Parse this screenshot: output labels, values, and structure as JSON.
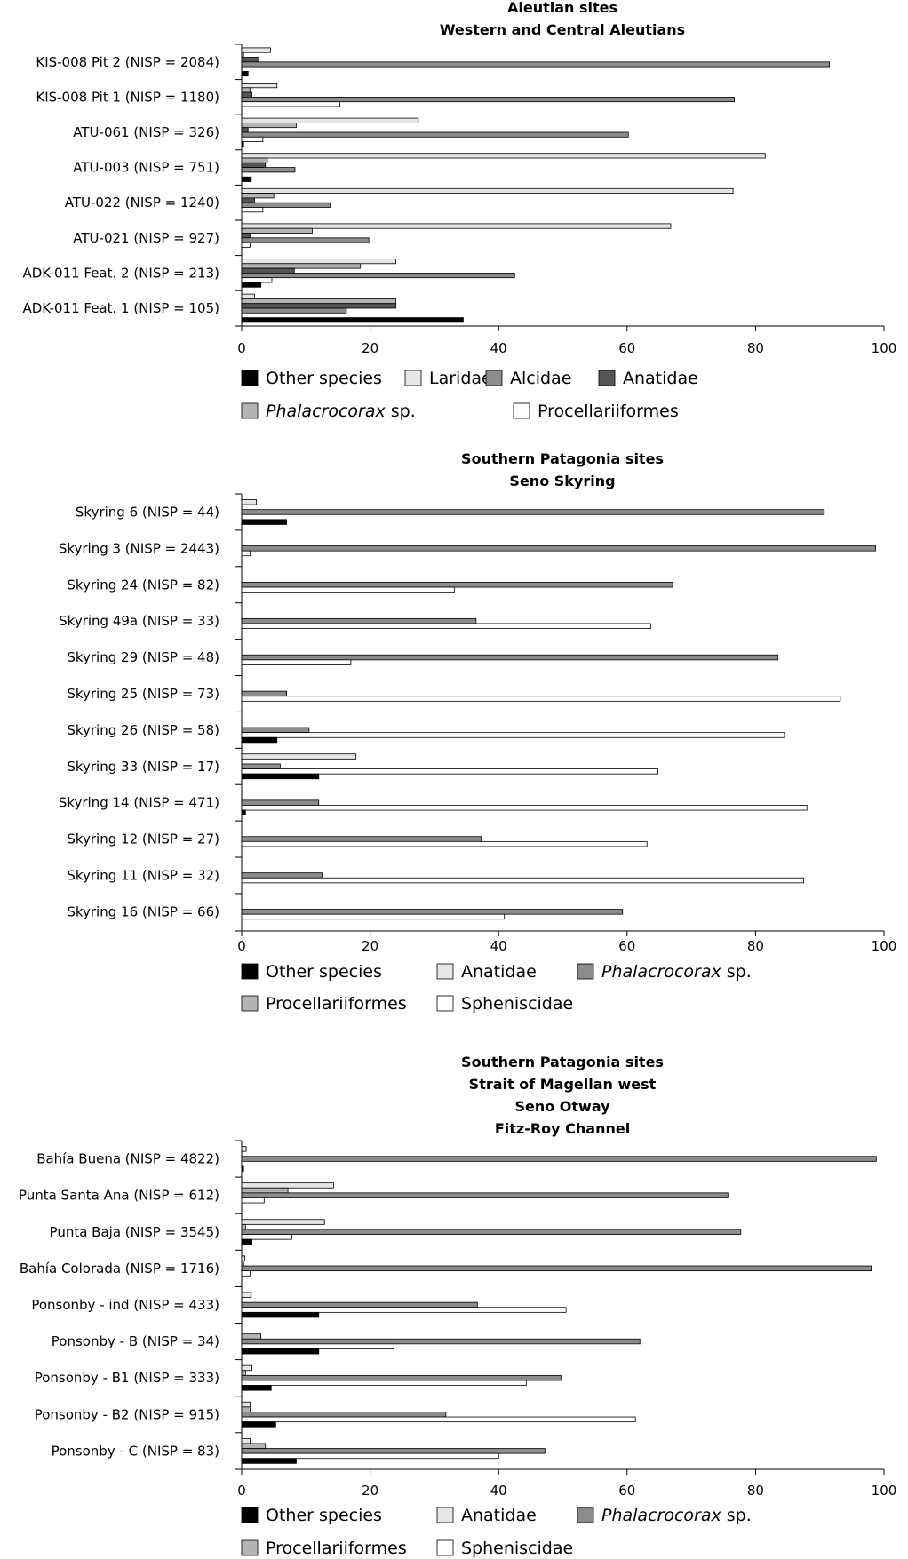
{
  "colors": {
    "other_species": "#000000",
    "laridae": "#e6e6e6",
    "alcidae": "#8c8c8c",
    "anatidae_dark": "#555555",
    "phalacrocorax": "#b4b4b4",
    "procellariiformes_white": "#ffffff",
    "anatidae_light": "#e6e6e6",
    "phalacrocorax_mid": "#8c8c8c",
    "procellariiformes_light": "#b4b4b4",
    "spheniscidae": "#ffffff"
  },
  "chart_data": [
    {
      "type": "bar",
      "orientation": "horizontal",
      "title": [
        "Aleutian sites",
        "Western and Central Aleutians"
      ],
      "xlabel": "",
      "ylabel": "",
      "xlim": [
        0,
        100
      ],
      "xticks": [
        "0",
        "20",
        "40",
        "60",
        "80",
        "100"
      ],
      "grid": false,
      "legend_position": "bottom",
      "categories": [
        "KIS-008 Pit 2 (NISP = 2084)",
        "KIS-008 Pit 1 (NISP = 1180)",
        "ATU-061 (NISP = 326)",
        "ATU-003 (NISP = 751)",
        "ATU-022 (NISP = 1240)",
        "ATU-021 (NISP = 927)",
        "ADK-011 Feat. 2 (NISP = 213)",
        "ADK-011 Feat. 1 (NISP = 105)"
      ],
      "series_order_in_group": [
        "Laridae",
        "Phalacrocorax sp.",
        "Anatidae",
        "Alcidae",
        "Procellariiformes",
        "Other species"
      ],
      "series": [
        {
          "name": "Other species",
          "color_key": "other_species",
          "values": [
            1,
            0,
            0.3,
            1.5,
            0,
            0,
            3,
            34.5
          ]
        },
        {
          "name": "Laridae",
          "color_key": "laridae",
          "values": [
            4.5,
            5.5,
            27.5,
            81.5,
            76.5,
            66.8,
            24,
            2
          ]
        },
        {
          "name": "Alcidae",
          "color_key": "alcidae",
          "values": [
            91.5,
            76.7,
            60.2,
            8.3,
            13.8,
            19.8,
            42.5,
            16.3
          ]
        },
        {
          "name": "Anatidae",
          "color_key": "anatidae_dark",
          "values": [
            2.7,
            1.6,
            1,
            3.7,
            2,
            1.3,
            8.2,
            24
          ]
        },
        {
          "name": "Phalacrocorax sp.",
          "color_key": "phalacrocorax",
          "values": [
            0.3,
            1.3,
            8.5,
            4,
            5,
            11,
            18.5,
            24
          ]
        },
        {
          "name": "Procellariiformes",
          "color_key": "procellariiformes_white",
          "values": [
            0,
            15.3,
            3.3,
            0,
            3.3,
            1.3,
            4.7,
            0
          ]
        }
      ],
      "legend": [
        {
          "label": "Other species",
          "color_key": "other_species"
        },
        {
          "label": "Laridae",
          "color_key": "laridae"
        },
        {
          "label": "Alcidae",
          "color_key": "alcidae"
        },
        {
          "label": "Anatidae",
          "color_key": "anatidae_dark"
        },
        {
          "label_italic": "Phalacrocorax",
          "label": " sp.",
          "color_key": "phalacrocorax"
        },
        {
          "label": "Procellariiformes",
          "color_key": "procellariiformes_white"
        }
      ]
    },
    {
      "type": "bar",
      "orientation": "horizontal",
      "title": [
        "Southern Patagonia sites",
        "Seno Skyring"
      ],
      "xlabel": "",
      "ylabel": "",
      "xlim": [
        0,
        100
      ],
      "xticks": [
        "0",
        "20",
        "40",
        "60",
        "80",
        "100"
      ],
      "grid": false,
      "legend_position": "bottom",
      "categories": [
        "Skyring 6 (NISP = 44)",
        "Skyring 3 (NISP = 2443)",
        "Skyring 24 (NISP = 82)",
        "Skyring 49a (NISP = 33)",
        "Skyring 29 (NISP = 48)",
        "Skyring 25 (NISP = 73)",
        "Skyring 26 (NISP = 58)",
        "Skyring 33 (NISP = 17)",
        "Skyring 14 (NISP = 471)",
        "Skyring 12 (NISP = 27)",
        "Skyring 11 (NISP = 32)",
        "Skyring 16 (NISP = 66)"
      ],
      "series_order_in_group": [
        "Anatidae",
        "Procellariiformes",
        "Phalacrocorax sp.",
        "Spheniscidae",
        "Other species"
      ],
      "series": [
        {
          "name": "Other species",
          "color_key": "other_species",
          "values": [
            7,
            0,
            0,
            0,
            0,
            0,
            5.5,
            12,
            0.6,
            0,
            0,
            0
          ]
        },
        {
          "name": "Anatidae",
          "color_key": "anatidae_light",
          "values": [
            2.3,
            0,
            0,
            0,
            0,
            0,
            0,
            17.8,
            0,
            0,
            0,
            0
          ]
        },
        {
          "name": "Phalacrocorax sp.",
          "color_key": "phalacrocorax_mid",
          "values": [
            90.7,
            98.7,
            67.1,
            36.5,
            83.5,
            7,
            10.5,
            6,
            12,
            37.3,
            12.5,
            59.3
          ]
        },
        {
          "name": "Procellariiformes",
          "color_key": "procellariiformes_light",
          "values": [
            0,
            0,
            0,
            0,
            0,
            0,
            0,
            0,
            0,
            0,
            0,
            0
          ]
        },
        {
          "name": "Spheniscidae",
          "color_key": "spheniscidae",
          "values": [
            0,
            1.3,
            33.1,
            63.7,
            17,
            93.2,
            84.5,
            64.8,
            88,
            63.1,
            87.5,
            40.9
          ]
        }
      ],
      "legend": [
        {
          "label": "Other species",
          "color_key": "other_species"
        },
        {
          "label": "Anatidae",
          "color_key": "anatidae_light"
        },
        {
          "label_italic": "Phalacrocorax",
          "label": " sp.",
          "color_key": "phalacrocorax_mid"
        },
        {
          "label": "Procellariiformes",
          "color_key": "procellariiformes_light"
        },
        {
          "label": "Spheniscidae",
          "color_key": "spheniscidae"
        }
      ]
    },
    {
      "type": "bar",
      "orientation": "horizontal",
      "title": [
        "Southern Patagonia sites",
        "Strait of Magellan west",
        "Seno Otway",
        "Fitz-Roy Channel"
      ],
      "xlabel": "",
      "ylabel": "",
      "xlim": [
        0,
        100
      ],
      "xticks": [
        "0",
        "20",
        "40",
        "60",
        "80",
        "100"
      ],
      "grid": false,
      "legend_position": "bottom",
      "categories": [
        "Bahía Buena (NISP = 4822)",
        "Punta Santa Ana (NISP = 612)",
        "Punta Baja (NISP = 3545)",
        "Bahía Colorada (NISP = 1716)",
        "Ponsonby - ind (NISP = 433)",
        "Ponsonby - B (NISP = 34)",
        "Ponsonby - B1 (NISP = 333)",
        "Ponsonby - B2 (NISP = 915)",
        "Ponsonby - C (NISP = 83)"
      ],
      "series_order_in_group": [
        "Anatidae",
        "Procellariiformes",
        "Phalacrocorax sp.",
        "Spheniscidae",
        "Other species"
      ],
      "series": [
        {
          "name": "Other species",
          "color_key": "other_species",
          "values": [
            0.3,
            0,
            1.6,
            0,
            12,
            12,
            4.6,
            5.3,
            8.5
          ]
        },
        {
          "name": "Anatidae",
          "color_key": "anatidae_light",
          "values": [
            0.7,
            14.3,
            12.9,
            0.5,
            1.5,
            0,
            1.6,
            1.3,
            1.3
          ]
        },
        {
          "name": "Phalacrocorax sp.",
          "color_key": "phalacrocorax_mid",
          "values": [
            98.8,
            75.7,
            77.7,
            98,
            36.7,
            62,
            49.7,
            31.8,
            47.2
          ]
        },
        {
          "name": "Procellariiformes",
          "color_key": "procellariiformes_light",
          "values": [
            0,
            7.2,
            0.6,
            0.3,
            0,
            3,
            0.6,
            1.3,
            3.7
          ]
        },
        {
          "name": "Spheniscidae",
          "color_key": "spheniscidae",
          "values": [
            0.2,
            3.5,
            7.8,
            1.3,
            50.5,
            23.7,
            44.3,
            61.3,
            40
          ]
        }
      ],
      "legend": [
        {
          "label": "Other species",
          "color_key": "other_species"
        },
        {
          "label": "Anatidae",
          "color_key": "anatidae_light"
        },
        {
          "label_italic": "Phalacrocorax",
          "label": " sp.",
          "color_key": "phalacrocorax_mid"
        },
        {
          "label": "Procellariiformes",
          "color_key": "procellariiformes_light"
        },
        {
          "label": "Spheniscidae",
          "color_key": "spheniscidae"
        }
      ]
    }
  ]
}
